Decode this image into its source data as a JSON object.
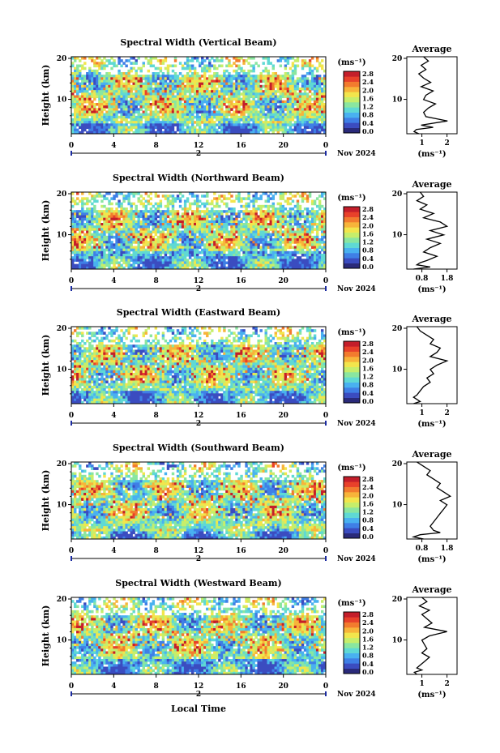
{
  "figure": {
    "xlabel": "Local Time",
    "date_label": "Nov 2024",
    "day_label": "2",
    "colorbar_unit": "(ms⁻¹)",
    "colorbar_ticks": [
      "0.0",
      "0.4",
      "0.8",
      "1.2",
      "1.6",
      "2.0",
      "2.4",
      "2.8"
    ],
    "ylabel": "Height (km)",
    "y_ticks": [
      "20",
      "10"
    ],
    "x_ticks": [
      "0",
      "4",
      "8",
      "12",
      "16",
      "20",
      "0"
    ],
    "average_title": "Average",
    "average_xlabel": "(ms⁻¹)"
  },
  "chart_data": [
    {
      "type": "heatmap",
      "title": "Spectral Width (Vertical Beam)",
      "x_range_hours": [
        0,
        24
      ],
      "y_range_km": [
        2,
        20
      ],
      "color_range": [
        0.0,
        2.8
      ],
      "profile": {
        "type": "line",
        "title": "Average",
        "xticks": [
          "1",
          "2"
        ],
        "xlim": [
          0.5,
          2.6
        ],
        "points": [
          [
            1.2,
            20
          ],
          [
            1.4,
            19
          ],
          [
            1.1,
            18
          ],
          [
            1.3,
            17
          ],
          [
            1.0,
            16
          ],
          [
            1.2,
            15
          ],
          [
            1.5,
            14
          ],
          [
            1.1,
            13
          ],
          [
            1.6,
            12
          ],
          [
            1.3,
            11
          ],
          [
            1.2,
            10
          ],
          [
            1.7,
            9
          ],
          [
            1.4,
            8
          ],
          [
            1.2,
            7
          ],
          [
            1.3,
            6
          ],
          [
            2.2,
            5
          ],
          [
            1.1,
            4
          ],
          [
            1.6,
            3.5
          ],
          [
            0.9,
            3
          ],
          [
            0.8,
            2.5
          ],
          [
            1.0,
            2
          ]
        ]
      }
    },
    {
      "type": "heatmap",
      "title": "Spectral Width (Northward Beam)",
      "x_range_hours": [
        0,
        24
      ],
      "y_range_km": [
        2,
        20
      ],
      "color_range": [
        0.0,
        2.8
      ],
      "profile": {
        "type": "line",
        "title": "Average",
        "xticks": [
          "0.8",
          "1.8"
        ],
        "xlim": [
          0.5,
          2.0
        ],
        "points": [
          [
            0.9,
            20
          ],
          [
            1.0,
            19
          ],
          [
            0.8,
            18
          ],
          [
            1.1,
            17
          ],
          [
            0.9,
            16
          ],
          [
            1.3,
            15
          ],
          [
            1.0,
            14
          ],
          [
            1.5,
            13
          ],
          [
            1.7,
            12
          ],
          [
            1.2,
            11
          ],
          [
            1.6,
            10
          ],
          [
            1.1,
            9
          ],
          [
            1.5,
            8
          ],
          [
            1.2,
            7
          ],
          [
            1.0,
            6
          ],
          [
            1.4,
            5
          ],
          [
            1.1,
            4
          ],
          [
            0.9,
            3.5
          ],
          [
            0.8,
            3
          ],
          [
            1.2,
            2.5
          ],
          [
            0.7,
            2
          ]
        ]
      }
    },
    {
      "type": "heatmap",
      "title": "Spectral Width (Eastward Beam)",
      "x_range_hours": [
        0,
        24
      ],
      "y_range_km": [
        2,
        20
      ],
      "color_range": [
        0.0,
        2.8
      ],
      "profile": {
        "type": "line",
        "title": "Average",
        "xticks": [
          "1",
          "2"
        ],
        "xlim": [
          0.6,
          2.1
        ],
        "points": [
          [
            0.9,
            20
          ],
          [
            1.0,
            19
          ],
          [
            1.2,
            18
          ],
          [
            1.4,
            17
          ],
          [
            1.3,
            16
          ],
          [
            1.6,
            15
          ],
          [
            1.5,
            14
          ],
          [
            1.3,
            13
          ],
          [
            1.8,
            12
          ],
          [
            1.5,
            11
          ],
          [
            1.3,
            10
          ],
          [
            1.4,
            9
          ],
          [
            1.2,
            8
          ],
          [
            1.3,
            7
          ],
          [
            1.1,
            6
          ],
          [
            1.0,
            5
          ],
          [
            0.9,
            4
          ],
          [
            0.8,
            3.5
          ],
          [
            0.9,
            3
          ],
          [
            1.0,
            2.5
          ],
          [
            0.8,
            2
          ]
        ]
      }
    },
    {
      "type": "heatmap",
      "title": "Spectral Width (Southward Beam)",
      "x_range_hours": [
        0,
        24
      ],
      "y_range_km": [
        2,
        20
      ],
      "color_range": [
        0.0,
        2.8
      ],
      "profile": {
        "type": "line",
        "title": "Average",
        "xticks": [
          "0.8",
          "1.8"
        ],
        "xlim": [
          0.5,
          2.0
        ],
        "points": [
          [
            0.8,
            20
          ],
          [
            1.0,
            19
          ],
          [
            1.2,
            18
          ],
          [
            1.1,
            17
          ],
          [
            1.3,
            16
          ],
          [
            1.5,
            15
          ],
          [
            1.4,
            14
          ],
          [
            1.6,
            13
          ],
          [
            1.8,
            12
          ],
          [
            1.5,
            11
          ],
          [
            1.7,
            10
          ],
          [
            1.6,
            9
          ],
          [
            1.5,
            8
          ],
          [
            1.4,
            7
          ],
          [
            1.3,
            6
          ],
          [
            1.2,
            5
          ],
          [
            1.3,
            4
          ],
          [
            1.5,
            3.5
          ],
          [
            0.9,
            3
          ],
          [
            0.7,
            2.5
          ],
          [
            1.0,
            2
          ]
        ]
      }
    },
    {
      "type": "heatmap",
      "title": "Spectral Width (Westward Beam)",
      "x_range_hours": [
        0,
        24
      ],
      "y_range_km": [
        2,
        20
      ],
      "color_range": [
        0.0,
        2.8
      ],
      "profile": {
        "type": "line",
        "title": "Average",
        "xticks": [
          "1",
          "2"
        ],
        "xlim": [
          0.6,
          2.6
        ],
        "points": [
          [
            1.2,
            20
          ],
          [
            1.4,
            19
          ],
          [
            1.1,
            18
          ],
          [
            1.5,
            17
          ],
          [
            1.2,
            16
          ],
          [
            1.4,
            15
          ],
          [
            1.6,
            14
          ],
          [
            1.3,
            13
          ],
          [
            2.2,
            12
          ],
          [
            1.5,
            11
          ],
          [
            1.2,
            10
          ],
          [
            1.3,
            9
          ],
          [
            1.4,
            8
          ],
          [
            1.2,
            7
          ],
          [
            1.5,
            6
          ],
          [
            1.3,
            5
          ],
          [
            1.1,
            4
          ],
          [
            1.0,
            3.5
          ],
          [
            1.2,
            3
          ],
          [
            0.9,
            2.5
          ],
          [
            1.0,
            2
          ]
        ]
      }
    }
  ],
  "colors": {
    "colorbar": [
      "#2a2a7a",
      "#3b4cc0",
      "#3f7fe6",
      "#49b1f0",
      "#5fd9d4",
      "#8ae6a0",
      "#c6ee6b",
      "#f2e54c",
      "#f7b43a",
      "#f27b2e",
      "#e8412a",
      "#c41e2a"
    ]
  }
}
